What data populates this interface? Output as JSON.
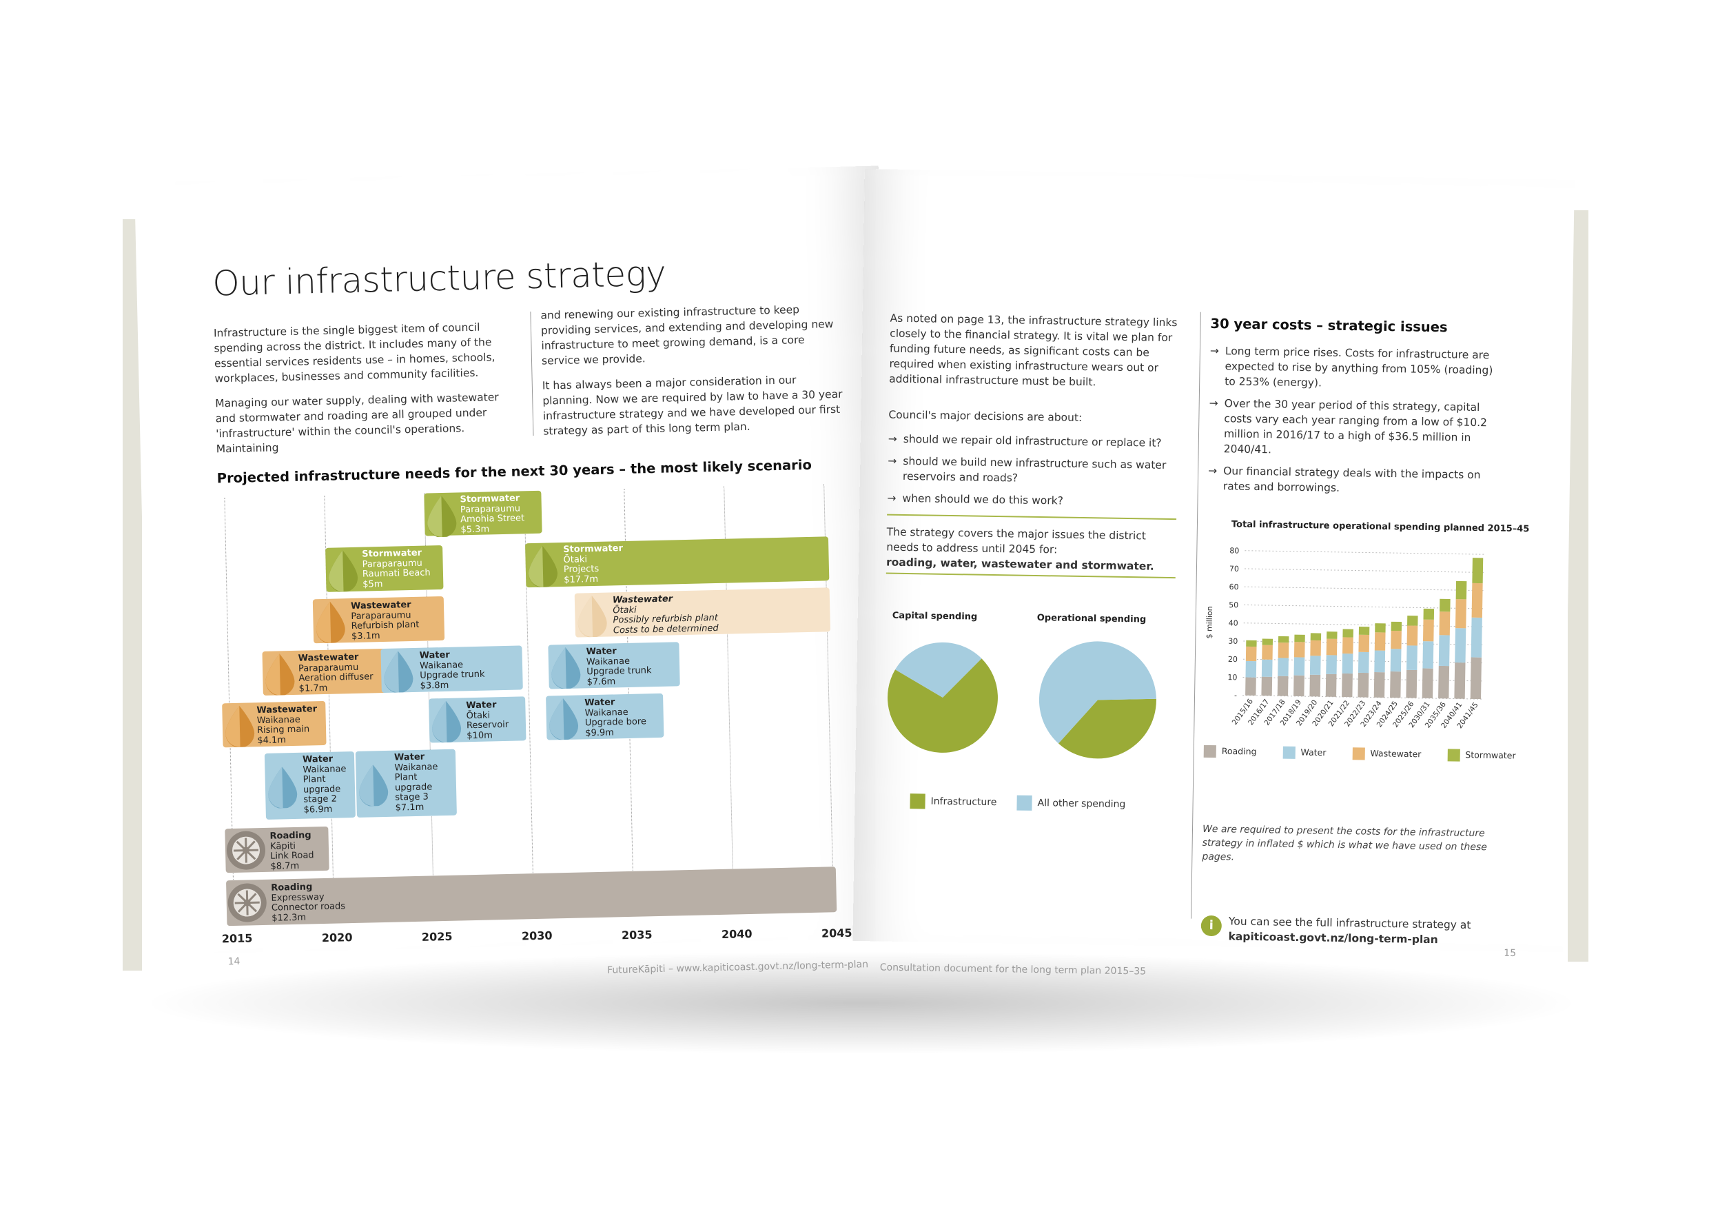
{
  "left_page": {
    "title": "Our infrastructure strategy",
    "col1": [
      "Infrastructure is the single biggest item of council spending across the district. It includes many of the essential services residents use – in homes, schools, workplaces, businesses and community facilities.",
      "Managing our water supply, dealing with wastewater and stormwater and roading are all grouped under 'infrastructure' within the council's operations. Maintaining"
    ],
    "col2": [
      "and renewing our existing infrastructure to keep providing services, and extending and developing new infrastructure to meet growing demand, is a core service we provide.",
      "It has always been a major consideration in our planning. Now we are required by law to have a 30 year infrastructure strategy and we have developed our first strategy as part of this long term plan."
    ],
    "timeline_title": "Projected infrastructure needs for the next 30 years – the most likely scenario",
    "years": [
      "2015",
      "2020",
      "2025",
      "2030",
      "2035",
      "2040",
      "2045"
    ],
    "projects": [
      {
        "category": "Stormwater",
        "lines": [
          "Paraparaumu",
          "Amohia Street"
        ],
        "cost": "$5.3m"
      },
      {
        "category": "Stormwater",
        "lines": [
          "Paraparaumu",
          "Raumati Beach"
        ],
        "cost": "$5m"
      },
      {
        "category": "Stormwater",
        "lines": [
          "Ōtaki",
          "Projects"
        ],
        "cost": "$17.7m"
      },
      {
        "category": "Wastewater",
        "lines": [
          "Paraparaumu",
          "Refurbish plant"
        ],
        "cost": "$3.1m"
      },
      {
        "category": "Wastewater",
        "lines": [
          "Ōtaki",
          "Possibly refurbish plant"
        ],
        "cost": "Costs to be determined"
      },
      {
        "category": "Wastewater",
        "lines": [
          "Paraparaumu",
          "Aeration diffuser"
        ],
        "cost": "$1.7m"
      },
      {
        "category": "Water",
        "lines": [
          "Waikanae",
          "Upgrade trunk"
        ],
        "cost": "$3.8m"
      },
      {
        "category": "Water",
        "lines": [
          "Waikanae",
          "Upgrade trunk"
        ],
        "cost": "$7.6m"
      },
      {
        "category": "Wastewater",
        "lines": [
          "Waikanae",
          "Rising main"
        ],
        "cost": "$4.1m"
      },
      {
        "category": "Water",
        "lines": [
          "Ōtaki",
          "Reservoir"
        ],
        "cost": "$10m"
      },
      {
        "category": "Water",
        "lines": [
          "Waikanae",
          "Upgrade bore"
        ],
        "cost": "$9.9m"
      },
      {
        "category": "Water",
        "lines": [
          "Waikanae",
          "Plant",
          "upgrade",
          "stage 2"
        ],
        "cost": "$6.9m"
      },
      {
        "category": "Water",
        "lines": [
          "Waikanae",
          "Plant",
          "upgrade",
          "stage 3"
        ],
        "cost": "$7.1m"
      },
      {
        "category": "Roading",
        "lines": [
          "Kāpiti",
          "Link Road"
        ],
        "cost": "$8.7m"
      },
      {
        "category": "Roading",
        "lines": [
          "Expressway",
          "Connector roads"
        ],
        "cost": "$12.3m"
      }
    ],
    "page_number": "14",
    "footer": "FutureKāpiti – www.kapiticoast.govt.nz/long-term-plan"
  },
  "right_page": {
    "intro": "As noted on page 13, the infrastructure strategy links closely to the financial strategy. It is vital we plan for funding future needs, as significant costs can be required when existing infrastructure wears out or additional infrastructure must be built.",
    "decisions_heading": "Council's major decisions are about:",
    "decisions": [
      "should we repair old infrastructure or replace it?",
      "should we build new infrastructure such as water reservoirs and roads?",
      "when should we do this work?"
    ],
    "covers_text": "The strategy covers the major issues the district needs to address until 2045 for:",
    "covers_bold": "roading, water, wastewater and stormwater.",
    "pie_titles": [
      "Capital spending",
      "Operational spending"
    ],
    "pie_legend": [
      "Infrastructure",
      "All other spending"
    ],
    "costs_heading": "30 year costs – strategic issues",
    "costs_points": [
      "Long term price rises. Costs for infrastructure are expected to rise by anything from 105% (roading) to 253% (energy).",
      "Over the 30 year period of this strategy, capital costs vary each year ranging from a low of $10.2 million in 2016/17 to a high of $36.5 million in 2040/41.",
      "Our financial strategy deals with the impacts on rates and borrowings."
    ],
    "note": "We are required to present the costs for the infrastructure strategy in inflated $ which is what we have used on these pages.",
    "info_text": "You can see the full infrastructure strategy at",
    "info_link": "kapiticoast.govt.nz/long-term-plan",
    "page_number": "15",
    "footer": "Consultation document for the long term plan 2015–35"
  },
  "colors": {
    "roading": "#b8afa6",
    "water": "#a9cfe0",
    "wastewater": "#e9b776",
    "stormwater": "#a8b84a",
    "infrastructure": "#9aab37",
    "other": "#a6cddf"
  },
  "chart_data": [
    {
      "type": "pie",
      "title": "Capital spending",
      "labels": [
        "Infrastructure",
        "All other spending"
      ],
      "values": [
        71,
        29
      ]
    },
    {
      "type": "pie",
      "title": "Operational spending",
      "labels": [
        "Infrastructure",
        "All other spending"
      ],
      "values": [
        37,
        63
      ]
    },
    {
      "type": "bar",
      "stacked": true,
      "title": "Total infrastructure operational spending planned 2015–45",
      "ylabel": "$ million",
      "ylim": [
        0,
        80
      ],
      "yticks": [
        "-",
        "10",
        "20",
        "30",
        "40",
        "50",
        "60",
        "70",
        "80"
      ],
      "categories": [
        "2015/16",
        "2016/17",
        "2017/18",
        "2018/19",
        "2019/20",
        "2020/21",
        "2021/22",
        "2022/23",
        "2023/24",
        "2024/25",
        "2025/26",
        "2030/31",
        "2035/36",
        "2040/41",
        "2041/45"
      ],
      "series": [
        {
          "name": "Roading",
          "values": [
            10,
            10.5,
            11,
            11.5,
            12,
            12.5,
            13,
            13.5,
            14,
            14.5,
            15.5,
            16.5,
            18,
            20,
            23
          ]
        },
        {
          "name": "Water",
          "values": [
            9,
            9.5,
            10,
            10,
            10.5,
            10.5,
            11,
            11.5,
            12,
            12.5,
            13.5,
            15,
            17,
            19,
            22
          ]
        },
        {
          "name": "Wastewater",
          "values": [
            8,
            8,
            8.5,
            8.5,
            8.5,
            9,
            9,
            9.5,
            10,
            10,
            11,
            12,
            13,
            16,
            19
          ]
        },
        {
          "name": "Stormwater",
          "values": [
            3.5,
            3.5,
            3.5,
            4,
            4,
            4,
            4.5,
            4.5,
            5,
            5,
            5.5,
            6,
            7,
            10,
            14
          ]
        }
      ],
      "legend": "bottom"
    }
  ]
}
